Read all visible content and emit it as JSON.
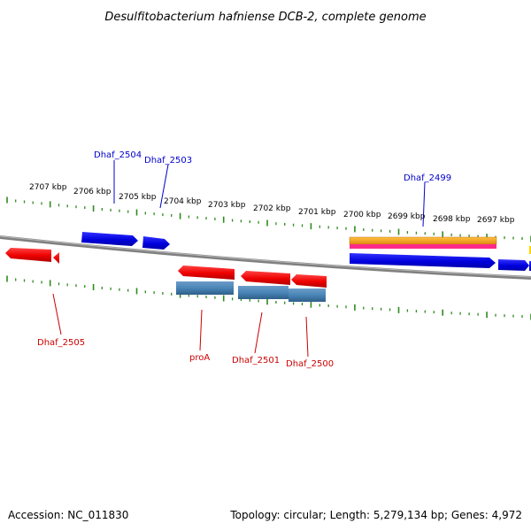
{
  "title": "Desulfitobacterium hafniense DCB-2, complete genome",
  "footer": {
    "accession": "Accession: NC_011830",
    "topology": "Topology: circular; Length: 5,279,134 bp; Genes: 4,972"
  },
  "colors": {
    "backbone": "#808080",
    "tick": "#2e8b1e",
    "forward_gene": "#0000ee",
    "reverse_gene": "#ee0000",
    "reverse_cds": "#4682b4",
    "forward_label": "#0000cc",
    "reverse_label": "#cc0000",
    "orange_feature": "#f0a020",
    "magenta_feature": "#ff2a8a",
    "yellow_feature": "#ffd700"
  },
  "scale_labels": [
    "2707 kbp",
    "2706 kbp",
    "2705 kbp",
    "2704 kbp",
    "2703 kbp",
    "2702 kbp",
    "2701 kbp",
    "2700 kbp",
    "2699 kbp",
    "2698 kbp",
    "2697 kbp"
  ],
  "gene_labels": [
    {
      "name": "Dhaf_2504",
      "strand": "forward"
    },
    {
      "name": "Dhaf_2503",
      "strand": "forward"
    },
    {
      "name": "Dhaf_2499",
      "strand": "forward"
    },
    {
      "name": "Dhaf_2505",
      "strand": "reverse"
    },
    {
      "name": "proA",
      "strand": "reverse"
    },
    {
      "name": "Dhaf_2501",
      "strand": "reverse"
    },
    {
      "name": "Dhaf_2500",
      "strand": "reverse"
    }
  ]
}
